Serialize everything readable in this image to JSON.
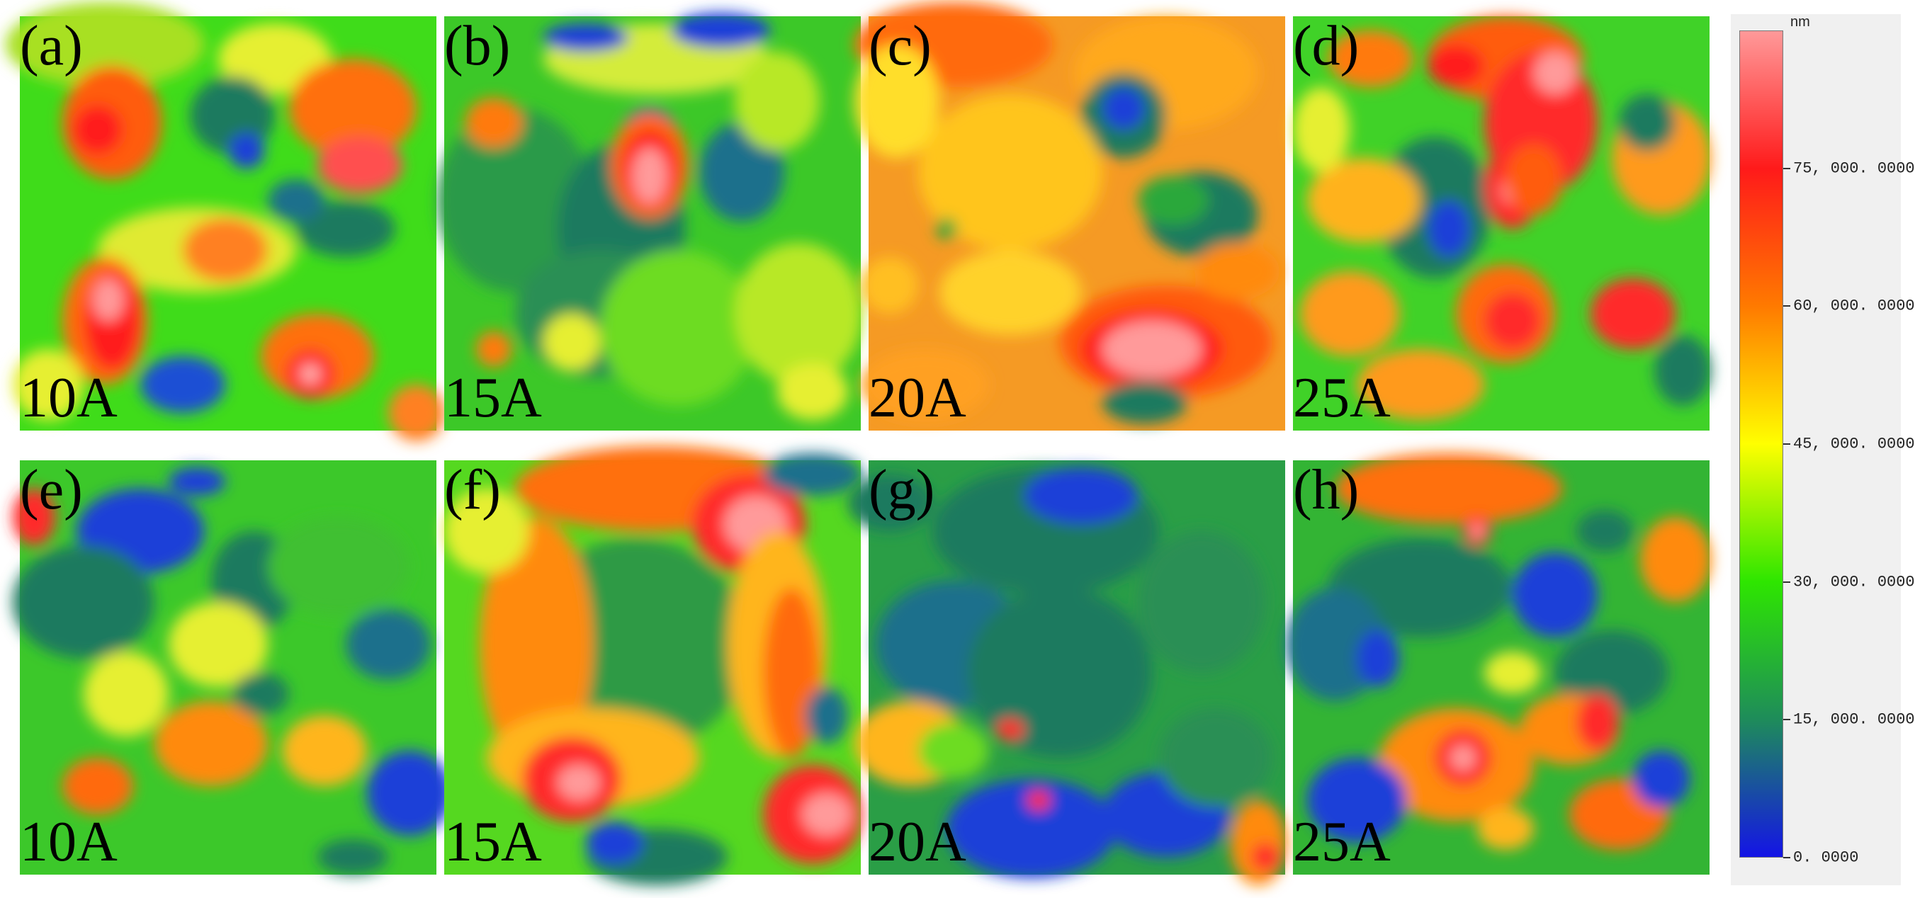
{
  "panels": [
    {
      "id": "a",
      "label": "(a)",
      "current": "10A",
      "bg": "#3fdc1a"
    },
    {
      "id": "b",
      "label": "(b)",
      "current": "15A",
      "bg": "#3cc828"
    },
    {
      "id": "c",
      "label": "(c)",
      "current": "20A",
      "bg": "#f59a24"
    },
    {
      "id": "d",
      "label": "(d)",
      "current": "25A",
      "bg": "#40d228"
    },
    {
      "id": "e",
      "label": "(e)",
      "current": "10A",
      "bg": "#3cc82a"
    },
    {
      "id": "f",
      "label": "(f)",
      "current": "15A",
      "bg": "#55d820"
    },
    {
      "id": "g",
      "label": "(g)",
      "current": "20A",
      "bg": "#2a9e46"
    },
    {
      "id": "h",
      "label": "(h)",
      "current": "25A",
      "bg": "#33b434"
    }
  ],
  "colorbar": {
    "unit": "nm",
    "ticks": [
      {
        "label": "75, 000. 0000",
        "value": 75000
      },
      {
        "label": "60, 000. 0000",
        "value": 60000
      },
      {
        "label": "45, 000. 0000",
        "value": 45000
      },
      {
        "label": "30, 000. 0000",
        "value": 30000
      },
      {
        "label": "15, 000. 0000",
        "value": 15000
      },
      {
        "label": "0. 0000",
        "value": 0
      }
    ],
    "max_value": 90000,
    "colors": [
      "#ff9999",
      "#ff1a1a",
      "#ff7a00",
      "#ffff00",
      "#2ee600",
      "#1e8c5a",
      "#1414e6"
    ]
  }
}
